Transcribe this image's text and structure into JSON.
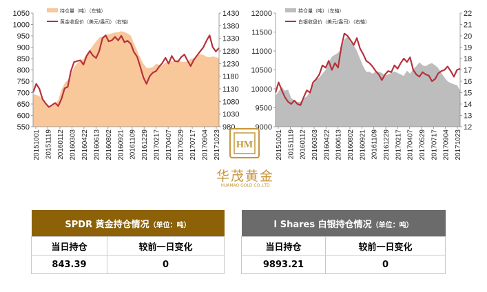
{
  "charts": [
    {
      "type": "area+line",
      "legend_placement": "top-left",
      "series": [
        {
          "name": "持仓量（吨）（左轴）",
          "kind": "area",
          "axis": "left",
          "color": "#f8c79a"
        },
        {
          "name": "黄金收盘价（美元/盎司）（右轴）",
          "kind": "line",
          "axis": "right",
          "color": "#b5323b"
        }
      ],
      "left_axis": {
        "min": 550,
        "max": 1050,
        "ticks": [
          550,
          600,
          650,
          700,
          750,
          800,
          850,
          900,
          950,
          1000,
          1050
        ]
      },
      "right_axis": {
        "min": 980,
        "max": 1430,
        "ticks": [
          980,
          1030,
          1080,
          1130,
          1180,
          1230,
          1280,
          1330,
          1380,
          1430
        ]
      },
      "x_labels": [
        "20151001",
        "20151119",
        "20160112",
        "20160303",
        "20160422",
        "20160613",
        "20160802",
        "20160921",
        "20161109",
        "20161229",
        "20170217",
        "20170407",
        "20170529",
        "20170717",
        "20170904",
        "20171023"
      ],
      "area_values": [
        692,
        690,
        684,
        668,
        647,
        640,
        647,
        651,
        668,
        711,
        741,
        756,
        779,
        812,
        829,
        842,
        848,
        871,
        888,
        907,
        925,
        942,
        947,
        954,
        957,
        961,
        965,
        966,
        970,
        967,
        960,
        951,
        918,
        885,
        854,
        827,
        810,
        808,
        813,
        826,
        823,
        820,
        832,
        837,
        838,
        839,
        845,
        836,
        836,
        836,
        849,
        851,
        862,
        869,
        866,
        858,
        856,
        859,
        857,
        851
      ],
      "line_values": [
        1116,
        1150,
        1130,
        1090,
        1072,
        1058,
        1066,
        1074,
        1062,
        1090,
        1132,
        1138,
        1200,
        1236,
        1240,
        1243,
        1226,
        1260,
        1280,
        1262,
        1252,
        1280,
        1330,
        1342,
        1318,
        1322,
        1336,
        1322,
        1340,
        1315,
        1320,
        1308,
        1276,
        1258,
        1218,
        1175,
        1150,
        1180,
        1194,
        1200,
        1218,
        1232,
        1253,
        1230,
        1260,
        1240,
        1238,
        1256,
        1266,
        1242,
        1220,
        1245,
        1262,
        1278,
        1294,
        1320,
        1342,
        1295,
        1278,
        1292
      ]
    },
    {
      "type": "area+line",
      "legend_placement": "top-left",
      "series": [
        {
          "name": "持仓量（吨）（左轴）",
          "kind": "area",
          "axis": "left",
          "color": "#bdbdbd"
        },
        {
          "name": "白银收盘价（美元/盎司）（右轴）",
          "kind": "line",
          "axis": "right",
          "color": "#b5323b"
        }
      ],
      "left_axis": {
        "min": 9000,
        "max": 12000,
        "ticks": [
          9000,
          9500,
          10000,
          10500,
          11000,
          11500,
          12000
        ]
      },
      "right_axis": {
        "min": 12,
        "max": 22,
        "ticks": [
          12,
          13,
          14,
          15,
          16,
          17,
          18,
          19,
          20,
          21,
          22
        ]
      },
      "x_labels": [
        "20151001",
        "20151119",
        "20160112",
        "20160303",
        "20160422",
        "20160613",
        "20160802",
        "20160921",
        "20161109",
        "20161229",
        "20170217",
        "20170407",
        "20170529",
        "20170717",
        "20170904",
        "20171023"
      ],
      "area_values": [
        9820,
        9930,
        10050,
        9950,
        9980,
        9760,
        9700,
        9650,
        9660,
        9750,
        9800,
        9920,
        10100,
        10250,
        10300,
        10400,
        10500,
        10700,
        10850,
        10900,
        10950,
        11050,
        11300,
        11380,
        11220,
        11150,
        11000,
        10800,
        10600,
        10450,
        10450,
        10400,
        10450,
        10450,
        10420,
        10350,
        10380,
        10420,
        10460,
        10420,
        10380,
        10340,
        10480,
        10400,
        10520,
        10600,
        10700,
        10620,
        10600,
        10650,
        10680,
        10620,
        10550,
        10420,
        10300,
        10200,
        10150,
        10120,
        10100,
        9950
      ],
      "line_values": [
        15.0,
        15.9,
        15.2,
        14.6,
        14.2,
        14.0,
        14.3,
        14.0,
        13.9,
        14.6,
        15.2,
        15.0,
        15.9,
        16.2,
        16.6,
        17.4,
        17.2,
        17.8,
        17.0,
        17.6,
        17.2,
        19.0,
        20.2,
        20.0,
        19.6,
        19.2,
        19.8,
        18.9,
        18.4,
        17.8,
        17.6,
        17.3,
        16.9,
        16.6,
        16.1,
        16.6,
        16.9,
        16.8,
        17.4,
        17.1,
        17.6,
        18.0,
        17.7,
        18.1,
        17.0,
        16.6,
        16.4,
        16.8,
        16.6,
        16.5,
        16.0,
        16.2,
        16.7,
        16.9,
        17.0,
        17.3,
        16.9,
        16.4,
        17.0,
        17.1
      ]
    }
  ],
  "logo": {
    "cn": "华茂黄金",
    "en": "HUAMAO GOLD CO.,LTD",
    "mark": "HM"
  },
  "tables": {
    "spdr": {
      "title": "SPDR 黄金持仓情况",
      "unit": "（单位：吨）",
      "col1": "当日持仓",
      "col2": "较前一日变化",
      "v1": "843.39",
      "v2": "0"
    },
    "ishares": {
      "title": "I Shares 白银持仓情况",
      "unit": "（单位：吨）",
      "col1": "当日持仓",
      "col2": "较前一日变化",
      "v1": "9893.21",
      "v2": "0"
    }
  },
  "colors": {
    "gold_header": "#8c6107",
    "silver_header": "#6b6b6b",
    "logo": "#c6963a"
  }
}
